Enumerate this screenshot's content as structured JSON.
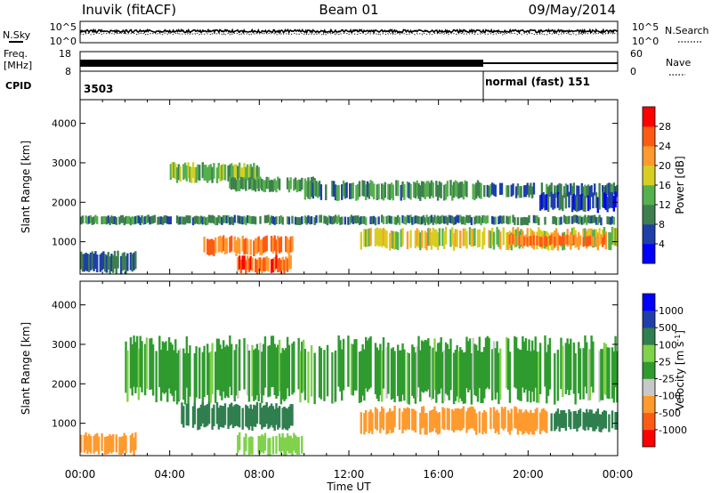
{
  "header": {
    "station": "Inuvik (fitACF)",
    "beam": "Beam 01",
    "date": "09/May/2014"
  },
  "top_panels": {
    "nsky_label": "N.Sky",
    "nsearch_label": "N.Search",
    "nsky_ticks": [
      "10^5",
      "10^0"
    ],
    "freq_label": "Freq.",
    "freq_unit": "[MHz]",
    "freq_ticks": [
      "18",
      "8"
    ],
    "nave_label": "Nave",
    "nave_ticks": [
      "60",
      "0"
    ],
    "cpid_label": "CPID",
    "cpid_first": "3503",
    "cpid_second": "normal (fast) 151",
    "cpid_switch_hour": 18
  },
  "colors": {
    "power": [
      "#0000ff",
      "#1e3fa8",
      "#3f7f4f",
      "#55b04e",
      "#d7ce23",
      "#ff9a2e",
      "#ff5a14",
      "#ff0000"
    ],
    "velocity": [
      "#ff0000",
      "#ff5a14",
      "#ff9a2e",
      "#c8c8c8",
      "#2f9b2f",
      "#7fd24a",
      "#2f7f4f",
      "#1e3fa8",
      "#0000ff"
    ]
  },
  "chart_data": [
    {
      "type": "heatmap",
      "name": "power",
      "xlabel": "",
      "ylabel": "Slant Range [km]",
      "xlim": [
        0,
        24
      ],
      "ylim": [
        180,
        4600
      ],
      "yticks": [
        "4000",
        "3000",
        "2000",
        "1000"
      ],
      "colorbar_label": "Power [dB]",
      "colorbar_ticks": [
        "28",
        "24",
        "20",
        "16",
        "12",
        "8",
        "4"
      ],
      "colorbar_range": [
        0,
        32
      ],
      "bands": [
        {
          "t0": 0.0,
          "t1": 24.0,
          "r0": 1450,
          "r1": 1650,
          "v": 10
        },
        {
          "t0": 4.0,
          "t1": 8.0,
          "r0": 2550,
          "r1": 2950,
          "v": 14
        },
        {
          "t0": 6.5,
          "t1": 10.5,
          "r0": 2300,
          "r1": 2600,
          "v": 12
        },
        {
          "t0": 10.0,
          "t1": 18.0,
          "r0": 2100,
          "r1": 2500,
          "v": 11
        },
        {
          "t0": 18.0,
          "t1": 24.0,
          "r0": 2150,
          "r1": 2450,
          "v": 9
        },
        {
          "t0": 5.5,
          "t1": 9.5,
          "r0": 700,
          "r1": 1100,
          "v": 24
        },
        {
          "t0": 7.0,
          "t1": 9.5,
          "r0": 250,
          "r1": 600,
          "v": 26
        },
        {
          "t0": 12.5,
          "t1": 24.0,
          "r0": 850,
          "r1": 1300,
          "v": 18
        },
        {
          "t0": 19.0,
          "t1": 23.5,
          "r0": 900,
          "r1": 1150,
          "v": 24
        },
        {
          "t0": 0.0,
          "t1": 2.5,
          "r0": 250,
          "r1": 700,
          "v": 8
        },
        {
          "t0": 20.5,
          "t1": 24.0,
          "r0": 1800,
          "r1": 2200,
          "v": 6
        }
      ]
    },
    {
      "type": "heatmap",
      "name": "velocity",
      "xlabel": "Time UT",
      "ylabel": "Slant Range [km]",
      "xlim": [
        0,
        24
      ],
      "ylim": [
        180,
        4600
      ],
      "xticks": [
        "00:00",
        "04:00",
        "08:00",
        "12:00",
        "16:00",
        "20:00",
        "00:00"
      ],
      "yticks": [
        "4000",
        "3000",
        "2000",
        "1000"
      ],
      "colorbar_label": "Velocity [m s",
      "colorbar_label_sup": "-1",
      "colorbar_label_tail": "]",
      "colorbar_ticks": [
        "1000",
        "500",
        "100",
        "25",
        "-25",
        "-100",
        "-500",
        "-1000"
      ],
      "bands": [
        {
          "t0": 2.0,
          "t1": 24.0,
          "r0": 1700,
          "r1": 3000,
          "v": 0
        },
        {
          "t0": 4.5,
          "t1": 9.5,
          "r0": 900,
          "r1": 1450,
          "v": 200
        },
        {
          "t0": 7.0,
          "t1": 10.0,
          "r0": 250,
          "r1": 700,
          "v": 60
        },
        {
          "t0": 12.5,
          "t1": 21.0,
          "r0": 800,
          "r1": 1350,
          "v": -300
        },
        {
          "t0": 21.0,
          "t1": 24.0,
          "r0": 850,
          "r1": 1300,
          "v": 150
        },
        {
          "t0": 0.0,
          "t1": 2.5,
          "r0": 250,
          "r1": 700,
          "v": -400
        }
      ]
    }
  ]
}
